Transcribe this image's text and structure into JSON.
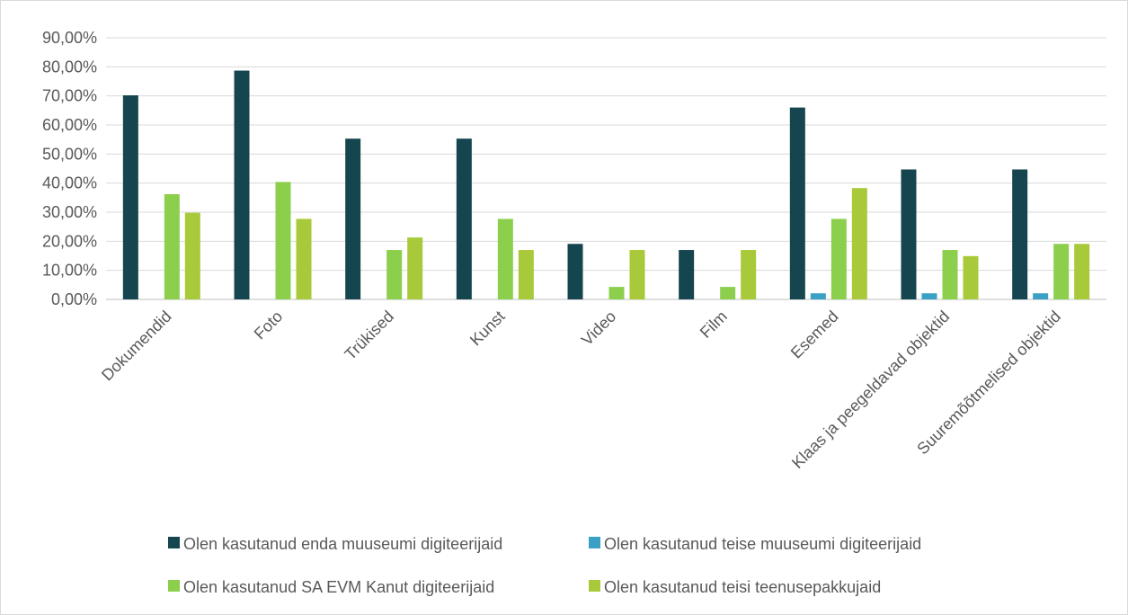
{
  "chart_data": {
    "type": "bar",
    "categories": [
      "Dokumendid",
      "Foto",
      "Trükised",
      "Kunst",
      "Video",
      "Film",
      "Esemed",
      "Klaas ja peegeldavad objektid",
      "Suuremõõtmelised objektid"
    ],
    "series": [
      {
        "name": "Olen kasutanud enda muuseumi digiteerijaid",
        "color": "#15464f",
        "values": [
          70.2,
          78.7,
          55.3,
          55.3,
          19.1,
          17.0,
          66.0,
          44.7,
          44.7
        ]
      },
      {
        "name": "Olen kasutanud teise muuseumi digiteerijaid",
        "color": "#3aa0c4",
        "values": [
          0,
          0,
          0,
          0,
          0,
          0,
          2.1,
          2.1,
          2.1
        ]
      },
      {
        "name": "Olen kasutanud SA EVM Kanut digiteerijaid",
        "color": "#8ccf4d",
        "values": [
          36.2,
          40.4,
          17.0,
          27.7,
          4.3,
          4.3,
          27.7,
          17.0,
          19.1
        ]
      },
      {
        "name": "Olen kasutanud teisi teenusepakkujaid",
        "color": "#a8c93a",
        "values": [
          29.8,
          27.7,
          21.3,
          17.0,
          17.0,
          17.0,
          38.3,
          14.9,
          19.1
        ]
      }
    ],
    "y_ticks": [
      "0,00%",
      "10,00%",
      "20,00%",
      "30,00%",
      "40,00%",
      "50,00%",
      "60,00%",
      "70,00%",
      "80,00%",
      "90,00%"
    ],
    "ylim": [
      0,
      90
    ],
    "grid": true,
    "legend_position": "bottom"
  }
}
